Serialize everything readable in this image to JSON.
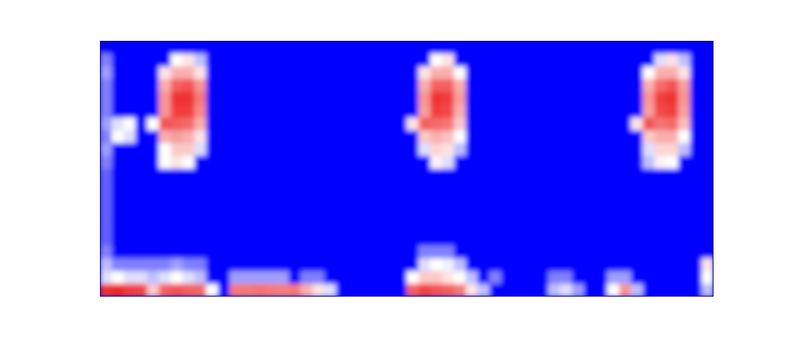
{
  "chart_data": {
    "type": "heatmap",
    "tick_labels": false,
    "cells": [
      [
        0,
        0,
        0,
        0,
        0,
        0,
        0,
        0,
        0,
        0,
        0,
        0,
        0,
        0,
        0,
        0,
        0,
        0,
        0,
        0,
        0,
        0,
        0,
        0,
        0,
        0,
        0,
        0,
        0,
        0,
        0,
        0,
        0,
        0,
        0,
        0,
        0,
        0,
        0,
        0,
        0,
        0,
        0,
        0,
        0,
        0,
        0,
        0,
        0,
        0,
        0,
        0
      ],
      [
        20,
        0,
        0,
        0,
        0,
        0,
        40,
        45,
        30,
        0,
        0,
        0,
        0,
        0,
        0,
        0,
        0,
        0,
        0,
        0,
        0,
        0,
        0,
        0,
        0,
        0,
        0,
        0,
        40,
        45,
        0,
        0,
        0,
        0,
        0,
        0,
        0,
        0,
        0,
        0,
        0,
        0,
        0,
        0,
        0,
        0,
        0,
        35,
        45,
        30,
        0,
        0
      ],
      [
        25,
        0,
        0,
        0,
        0,
        45,
        55,
        55,
        45,
        0,
        0,
        0,
        0,
        0,
        0,
        0,
        0,
        0,
        0,
        0,
        0,
        0,
        0,
        0,
        0,
        0,
        0,
        45,
        55,
        55,
        40,
        0,
        0,
        0,
        0,
        0,
        0,
        0,
        0,
        0,
        0,
        0,
        0,
        0,
        0,
        0,
        40,
        55,
        55,
        45,
        0,
        0
      ],
      [
        20,
        0,
        0,
        0,
        0,
        55,
        70,
        72,
        60,
        0,
        0,
        0,
        0,
        0,
        0,
        0,
        0,
        0,
        0,
        0,
        0,
        0,
        0,
        0,
        0,
        0,
        0,
        55,
        70,
        70,
        55,
        0,
        0,
        0,
        0,
        0,
        0,
        0,
        0,
        0,
        0,
        0,
        0,
        0,
        0,
        0,
        55,
        68,
        72,
        58,
        0,
        0
      ],
      [
        20,
        0,
        0,
        0,
        0,
        60,
        78,
        78,
        65,
        0,
        0,
        0,
        0,
        0,
        0,
        0,
        0,
        0,
        0,
        0,
        0,
        0,
        0,
        0,
        0,
        0,
        0,
        60,
        78,
        76,
        58,
        0,
        0,
        0,
        0,
        0,
        0,
        0,
        0,
        0,
        0,
        0,
        0,
        0,
        0,
        0,
        60,
        76,
        78,
        60,
        0,
        0
      ],
      [
        20,
        0,
        0,
        0,
        0,
        60,
        76,
        76,
        62,
        0,
        0,
        0,
        0,
        0,
        0,
        0,
        0,
        0,
        0,
        0,
        0,
        0,
        0,
        0,
        0,
        0,
        0,
        58,
        76,
        74,
        55,
        0,
        0,
        0,
        0,
        0,
        0,
        0,
        0,
        0,
        0,
        0,
        0,
        0,
        0,
        0,
        58,
        74,
        76,
        58,
        0,
        0
      ],
      [
        25,
        35,
        40,
        0,
        40,
        72,
        70,
        68,
        55,
        0,
        0,
        0,
        0,
        0,
        0,
        0,
        0,
        0,
        0,
        0,
        0,
        0,
        0,
        0,
        0,
        0,
        45,
        70,
        68,
        66,
        50,
        0,
        0,
        0,
        0,
        0,
        0,
        0,
        0,
        0,
        0,
        0,
        0,
        0,
        0,
        45,
        72,
        66,
        68,
        52,
        0,
        0
      ],
      [
        20,
        40,
        35,
        0,
        0,
        55,
        58,
        55,
        45,
        0,
        0,
        0,
        0,
        0,
        0,
        0,
        0,
        0,
        0,
        0,
        0,
        0,
        0,
        0,
        0,
        0,
        0,
        50,
        55,
        52,
        40,
        0,
        0,
        0,
        0,
        0,
        0,
        0,
        0,
        0,
        0,
        0,
        0,
        0,
        0,
        0,
        50,
        55,
        55,
        40,
        0,
        0
      ],
      [
        25,
        0,
        0,
        0,
        0,
        40,
        50,
        50,
        35,
        0,
        0,
        0,
        0,
        0,
        0,
        0,
        0,
        0,
        0,
        0,
        0,
        0,
        0,
        0,
        0,
        0,
        0,
        35,
        48,
        45,
        30,
        0,
        0,
        0,
        0,
        0,
        0,
        0,
        0,
        0,
        0,
        0,
        0,
        0,
        0,
        0,
        35,
        48,
        48,
        30,
        0,
        0
      ],
      [
        20,
        0,
        0,
        0,
        0,
        40,
        45,
        40,
        0,
        0,
        0,
        0,
        0,
        0,
        0,
        0,
        0,
        0,
        0,
        0,
        0,
        0,
        0,
        0,
        0,
        0,
        0,
        0,
        42,
        35,
        0,
        0,
        0,
        0,
        0,
        0,
        0,
        0,
        0,
        0,
        0,
        0,
        0,
        0,
        0,
        0,
        30,
        42,
        40,
        0,
        0,
        0
      ],
      [
        15,
        0,
        0,
        0,
        0,
        0,
        0,
        0,
        0,
        0,
        0,
        0,
        0,
        0,
        0,
        0,
        0,
        0,
        0,
        0,
        0,
        0,
        0,
        0,
        0,
        0,
        0,
        0,
        0,
        0,
        0,
        0,
        0,
        0,
        0,
        0,
        0,
        0,
        0,
        0,
        0,
        0,
        0,
        0,
        0,
        0,
        0,
        0,
        0,
        0,
        0,
        0
      ],
      [
        15,
        0,
        0,
        0,
        0,
        0,
        0,
        0,
        0,
        0,
        0,
        0,
        0,
        0,
        0,
        0,
        0,
        0,
        0,
        0,
        0,
        0,
        0,
        0,
        0,
        0,
        0,
        0,
        0,
        0,
        0,
        0,
        0,
        0,
        0,
        0,
        0,
        0,
        0,
        0,
        0,
        0,
        0,
        0,
        0,
        0,
        0,
        0,
        0,
        0,
        0,
        0
      ],
      [
        15,
        0,
        0,
        0,
        0,
        0,
        0,
        0,
        0,
        0,
        0,
        0,
        0,
        0,
        0,
        0,
        0,
        0,
        0,
        0,
        0,
        0,
        0,
        0,
        0,
        0,
        0,
        0,
        0,
        0,
        0,
        0,
        0,
        0,
        0,
        0,
        0,
        0,
        0,
        0,
        0,
        0,
        0,
        0,
        0,
        0,
        0,
        0,
        0,
        0,
        0,
        0
      ],
      [
        15,
        0,
        0,
        0,
        0,
        0,
        0,
        0,
        0,
        0,
        0,
        0,
        0,
        0,
        0,
        0,
        0,
        0,
        0,
        0,
        0,
        0,
        0,
        0,
        0,
        0,
        0,
        0,
        0,
        0,
        0,
        0,
        0,
        0,
        0,
        0,
        0,
        0,
        0,
        0,
        0,
        0,
        0,
        0,
        0,
        0,
        0,
        0,
        0,
        0,
        0,
        0
      ],
      [
        15,
        0,
        0,
        0,
        0,
        0,
        0,
        0,
        0,
        0,
        0,
        0,
        0,
        0,
        0,
        0,
        0,
        0,
        0,
        0,
        0,
        0,
        0,
        0,
        0,
        0,
        0,
        0,
        0,
        0,
        0,
        0,
        0,
        0,
        0,
        0,
        0,
        0,
        0,
        0,
        0,
        0,
        0,
        0,
        0,
        0,
        0,
        0,
        0,
        0,
        0,
        0
      ],
      [
        15,
        0,
        0,
        0,
        0,
        0,
        0,
        0,
        0,
        0,
        0,
        0,
        0,
        0,
        0,
        0,
        0,
        0,
        0,
        0,
        0,
        0,
        0,
        0,
        0,
        0,
        0,
        0,
        0,
        0,
        0,
        0,
        0,
        0,
        0,
        0,
        0,
        0,
        0,
        0,
        0,
        0,
        0,
        0,
        0,
        0,
        0,
        0,
        0,
        0,
        0,
        0
      ],
      [
        20,
        0,
        0,
        0,
        0,
        0,
        0,
        0,
        0,
        0,
        0,
        0,
        0,
        0,
        0,
        0,
        0,
        0,
        0,
        0,
        0,
        0,
        0,
        0,
        0,
        0,
        0,
        20,
        20,
        20,
        0,
        0,
        0,
        0,
        0,
        0,
        0,
        0,
        0,
        0,
        0,
        0,
        0,
        0,
        0,
        0,
        0,
        0,
        0,
        0,
        0,
        0
      ],
      [
        30,
        20,
        20,
        20,
        20,
        20,
        25,
        20,
        20,
        0,
        0,
        0,
        0,
        0,
        0,
        0,
        0,
        0,
        0,
        0,
        0,
        0,
        0,
        0,
        0,
        0,
        0,
        35,
        40,
        38,
        30,
        0,
        0,
        0,
        0,
        0,
        0,
        0,
        0,
        0,
        0,
        0,
        0,
        0,
        0,
        0,
        0,
        0,
        0,
        0,
        0,
        45
      ],
      [
        35,
        40,
        35,
        35,
        30,
        35,
        40,
        35,
        30,
        0,
        0,
        25,
        25,
        25,
        25,
        25,
        0,
        20,
        20,
        0,
        0,
        0,
        0,
        0,
        0,
        0,
        40,
        50,
        50,
        45,
        40,
        30,
        0,
        20,
        0,
        0,
        0,
        0,
        20,
        20,
        0,
        0,
        0,
        25,
        25,
        0,
        0,
        0,
        0,
        0,
        0,
        40
      ],
      [
        78,
        80,
        76,
        75,
        50,
        70,
        72,
        70,
        68,
        40,
        0,
        65,
        65,
        66,
        65,
        64,
        65,
        55,
        45,
        35,
        0,
        0,
        0,
        0,
        0,
        0,
        70,
        75,
        72,
        70,
        65,
        45,
        30,
        0,
        0,
        0,
        0,
        0,
        30,
        35,
        25,
        0,
        0,
        40,
        60,
        30,
        0,
        0,
        0,
        0,
        0,
        30
      ]
    ]
  }
}
